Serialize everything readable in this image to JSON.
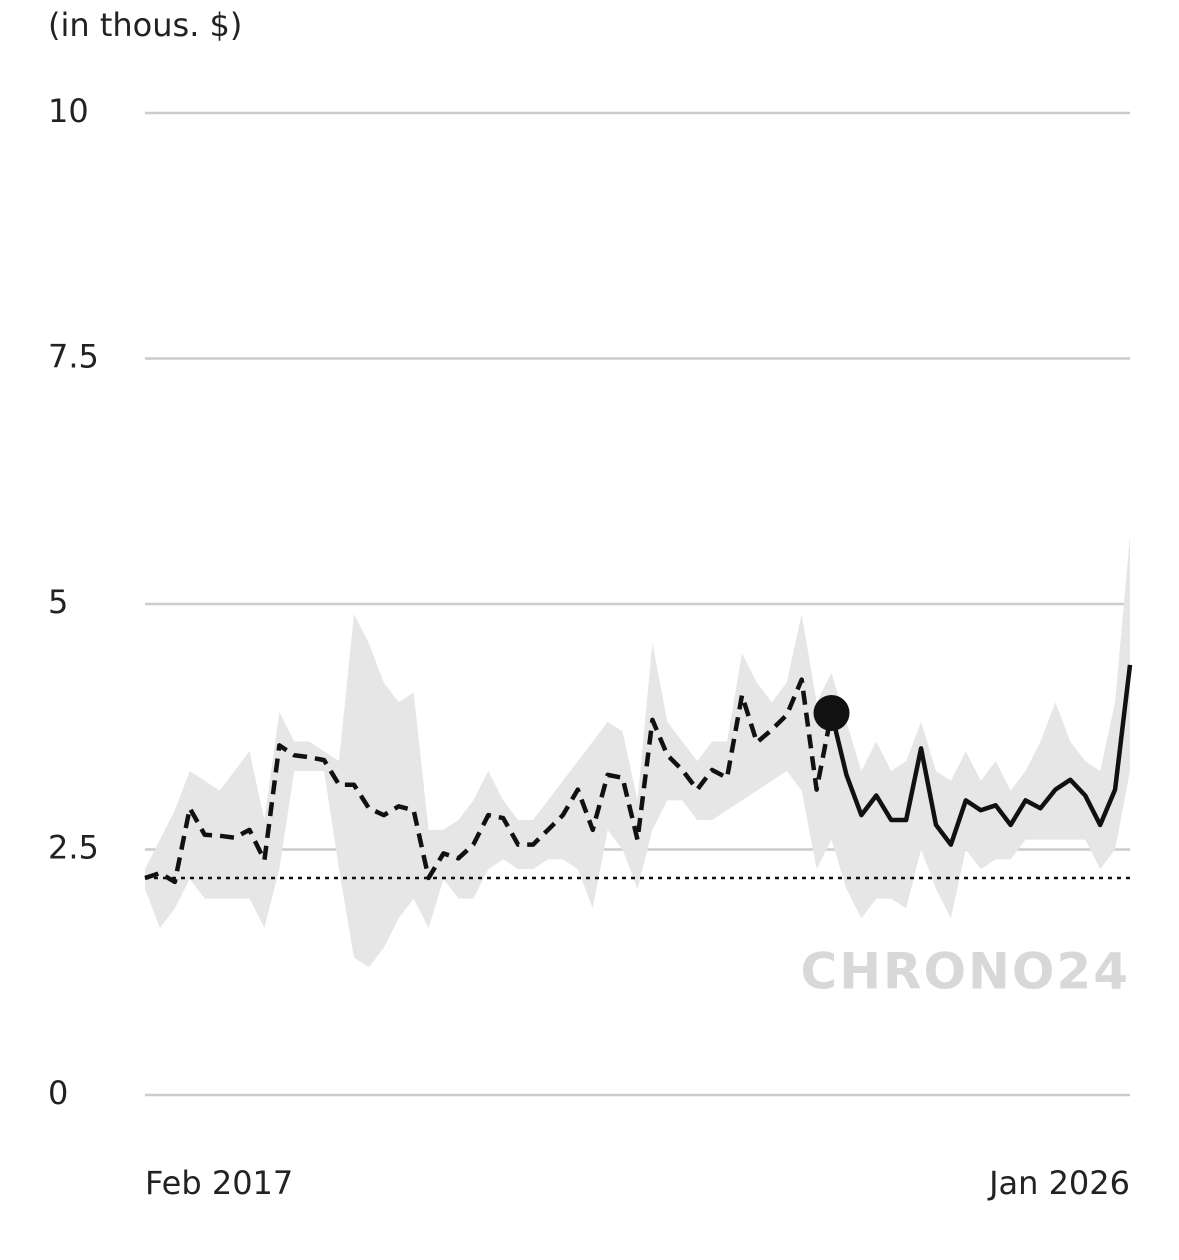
{
  "chart_data": {
    "type": "line",
    "y_label": "(in thous. $)",
    "watermark": "CHRONO24",
    "categories": [
      "Feb 2017",
      null,
      null,
      null,
      null,
      null,
      null,
      null,
      null,
      null,
      null,
      null,
      null,
      null,
      null,
      null,
      null,
      null,
      null,
      null,
      null,
      null,
      null,
      null,
      null,
      null,
      null,
      null,
      null,
      null,
      null,
      null,
      null,
      null,
      null,
      null,
      null,
      null,
      null,
      null,
      null,
      null,
      null,
      null,
      null,
      null,
      null,
      null,
      null,
      null,
      null,
      null,
      null,
      null,
      null,
      null,
      null,
      null,
      null,
      null,
      null,
      null,
      null,
      null,
      null,
      null,
      "Jan 2026"
    ],
    "series": [
      {
        "style": "dashed",
        "color": "#111111",
        "values": [
          2.21,
          2.26,
          2.17,
          2.92,
          2.65,
          2.64,
          2.62,
          2.7,
          2.39,
          3.56,
          3.46,
          3.44,
          3.41,
          3.16,
          3.16,
          2.92,
          2.85,
          2.94,
          2.9,
          2.21,
          2.46,
          2.41,
          2.55,
          2.85,
          2.82,
          2.55,
          2.55,
          2.7,
          2.85,
          3.11,
          2.7,
          3.26,
          3.23,
          2.6,
          3.82,
          3.46,
          3.31,
          3.11,
          3.31,
          3.23,
          4.07,
          3.59,
          3.72,
          3.87,
          4.23,
          3.11,
          3.89,
          null,
          null,
          null,
          null,
          null,
          null,
          null,
          null,
          null,
          null,
          null,
          null,
          null,
          null,
          null,
          null,
          null,
          null,
          null,
          null
        ]
      },
      {
        "style": "solid",
        "color": "#111111",
        "values": [
          null,
          null,
          null,
          null,
          null,
          null,
          null,
          null,
          null,
          null,
          null,
          null,
          null,
          null,
          null,
          null,
          null,
          null,
          null,
          null,
          null,
          null,
          null,
          null,
          null,
          null,
          null,
          null,
          null,
          null,
          null,
          null,
          null,
          null,
          null,
          null,
          null,
          null,
          null,
          null,
          null,
          null,
          null,
          null,
          null,
          null,
          3.89,
          3.26,
          2.85,
          3.05,
          2.8,
          2.8,
          3.53,
          2.75,
          2.55,
          3.0,
          2.9,
          2.95,
          2.75,
          3.0,
          2.92,
          3.11,
          3.21,
          3.05,
          2.75,
          3.11,
          4.38
        ]
      }
    ],
    "band": {
      "color": "#e6e6e6",
      "upper": [
        2.3,
        2.6,
        2.9,
        3.3,
        3.2,
        3.1,
        3.3,
        3.5,
        2.8,
        3.9,
        3.6,
        3.6,
        3.5,
        3.4,
        4.9,
        4.6,
        4.2,
        4.0,
        4.1,
        2.7,
        2.7,
        2.8,
        3.0,
        3.3,
        3.0,
        2.8,
        2.8,
        3.0,
        3.2,
        3.4,
        3.6,
        3.8,
        3.7,
        3.0,
        4.6,
        3.8,
        3.6,
        3.4,
        3.6,
        3.6,
        4.5,
        4.2,
        4.0,
        4.2,
        4.9,
        4.0,
        4.3,
        3.8,
        3.3,
        3.6,
        3.3,
        3.4,
        3.8,
        3.3,
        3.2,
        3.5,
        3.2,
        3.4,
        3.1,
        3.3,
        3.6,
        4.0,
        3.6,
        3.4,
        3.3,
        4.0,
        5.7
      ],
      "lower": [
        2.1,
        1.7,
        1.9,
        2.2,
        2.0,
        2.0,
        2.0,
        2.0,
        1.7,
        2.3,
        3.3,
        3.3,
        3.3,
        2.3,
        1.4,
        1.3,
        1.5,
        1.8,
        2.0,
        1.7,
        2.2,
        2.0,
        2.0,
        2.3,
        2.4,
        2.3,
        2.3,
        2.4,
        2.4,
        2.3,
        1.9,
        2.7,
        2.5,
        2.1,
        2.7,
        3.0,
        3.0,
        2.8,
        2.8,
        2.9,
        3.0,
        3.1,
        3.2,
        3.3,
        3.1,
        2.3,
        2.6,
        2.1,
        1.8,
        2.0,
        2.0,
        1.9,
        2.5,
        2.1,
        1.8,
        2.5,
        2.3,
        2.4,
        2.4,
        2.6,
        2.6,
        2.6,
        2.6,
        2.6,
        2.3,
        2.5,
        3.3
      ]
    },
    "reference_line": 2.21,
    "marker_index": 46,
    "ylim": [
      0,
      10
    ],
    "yticks": [
      0,
      2.5,
      5,
      7.5,
      10
    ],
    "grid": true
  }
}
